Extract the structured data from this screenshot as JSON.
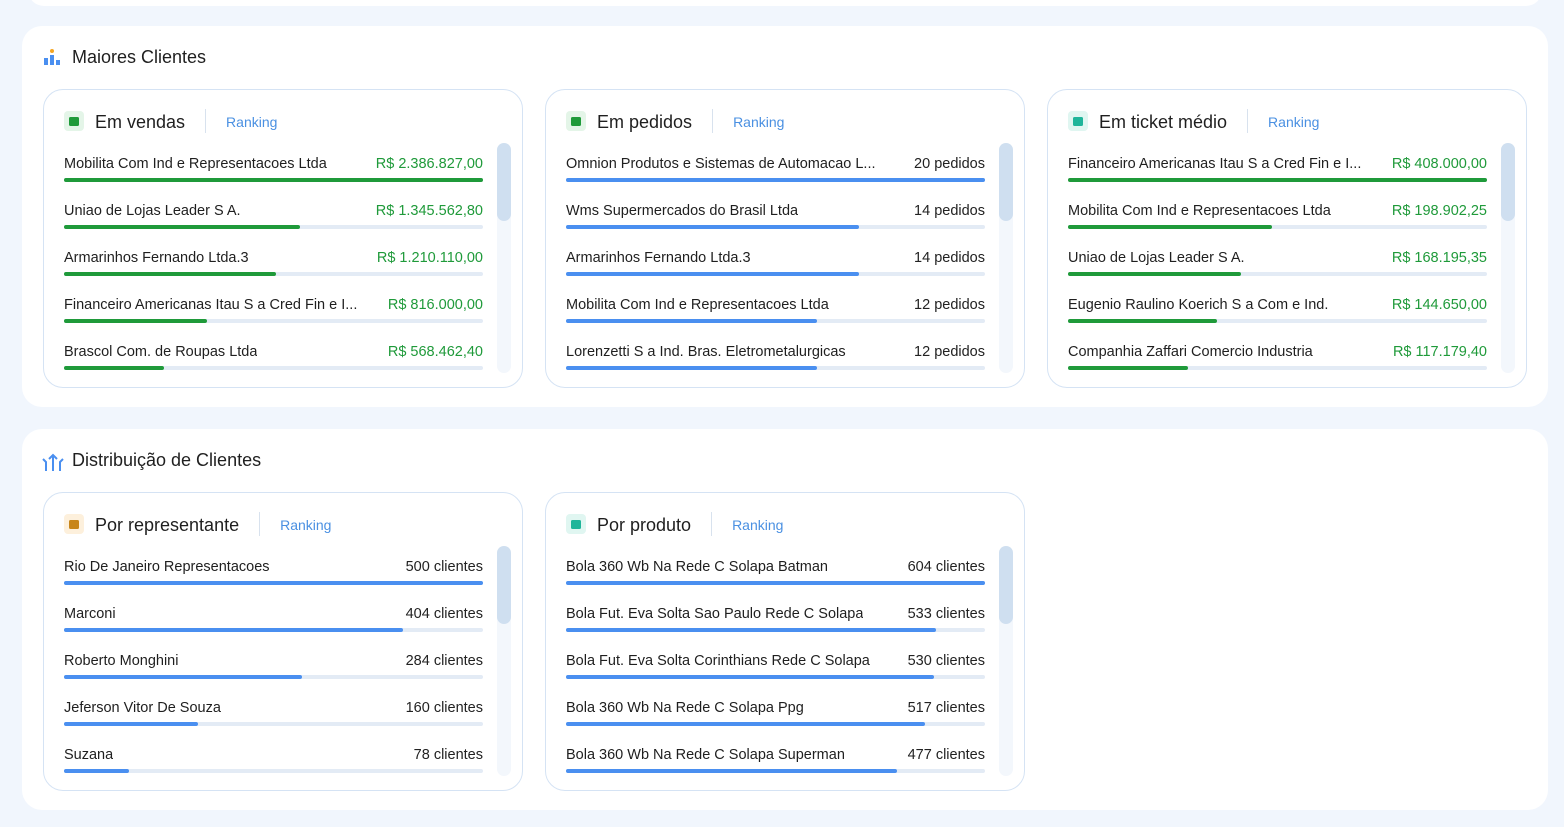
{
  "sections": [
    {
      "title": "Maiores Clientes",
      "cards": [
        {
          "title": "Em vendas",
          "link": "Ranking",
          "bar_color": "#1f9a3a",
          "value_color": "#1f9a3a",
          "rows": [
            {
              "name": "Mobilita Com Ind e Representacoes Ltda",
              "value": 2386827,
              "label": "R$ 2.386.827,00"
            },
            {
              "name": "Uniao de Lojas Leader S A.",
              "value": 1345562.8,
              "label": "R$ 1.345.562,80"
            },
            {
              "name": "Armarinhos Fernando Ltda.3",
              "value": 1210110,
              "label": "R$ 1.210.110,00"
            },
            {
              "name": "Financeiro Americanas Itau S a Cred Fin e I...",
              "value": 816000,
              "label": "R$ 816.000,00"
            },
            {
              "name": "Brascol Com. de Roupas Ltda",
              "value": 568462.4,
              "label": "R$ 568.462,40"
            }
          ]
        },
        {
          "title": "Em pedidos",
          "link": "Ranking",
          "bar_color": "#4a8ff0",
          "value_color": "#222222",
          "rows": [
            {
              "name": "Omnion Produtos e Sistemas de Automacao L...",
              "value": 20,
              "label": "20 pedidos"
            },
            {
              "name": "Wms Supermercados do Brasil Ltda",
              "value": 14,
              "label": "14 pedidos"
            },
            {
              "name": "Armarinhos Fernando Ltda.3",
              "value": 14,
              "label": "14 pedidos"
            },
            {
              "name": "Mobilita Com Ind e Representacoes Ltda",
              "value": 12,
              "label": "12 pedidos"
            },
            {
              "name": "Lorenzetti S a Ind. Bras. Eletrometalurgicas",
              "value": 12,
              "label": "12 pedidos"
            }
          ]
        },
        {
          "title": "Em ticket médio",
          "link": "Ranking",
          "bar_color": "#1f9a3a",
          "value_color": "#1f9a3a",
          "rows": [
            {
              "name": "Financeiro Americanas Itau S a Cred Fin e I...",
              "value": 408000,
              "label": "R$ 408.000,00"
            },
            {
              "name": "Mobilita Com Ind e Representacoes Ltda",
              "value": 198902.25,
              "label": "R$ 198.902,25"
            },
            {
              "name": "Uniao de Lojas Leader S A.",
              "value": 168195.35,
              "label": "R$ 168.195,35"
            },
            {
              "name": "Eugenio Raulino Koerich S a Com e Ind.",
              "value": 144650,
              "label": "R$ 144.650,00"
            },
            {
              "name": "Companhia Zaffari Comercio Industria",
              "value": 117179.4,
              "label": "R$ 117.179,40"
            }
          ]
        }
      ]
    },
    {
      "title": "Distribuição de Clientes",
      "cards": [
        {
          "title": "Por representante",
          "link": "Ranking",
          "bar_color": "#4a8ff0",
          "value_color": "#222222",
          "rows": [
            {
              "name": "Rio De Janeiro Representacoes",
              "value": 500,
              "label": "500 clientes"
            },
            {
              "name": "Marconi",
              "value": 404,
              "label": "404 clientes"
            },
            {
              "name": "Roberto Monghini",
              "value": 284,
              "label": "284 clientes"
            },
            {
              "name": "Jeferson Vitor De Souza",
              "value": 160,
              "label": "160 clientes"
            },
            {
              "name": "Suzana",
              "value": 78,
              "label": "78 clientes"
            }
          ]
        },
        {
          "title": "Por produto",
          "link": "Ranking",
          "bar_color": "#4a8ff0",
          "value_color": "#222222",
          "rows": [
            {
              "name": "Bola 360 Wb Na Rede C  Solapa Batman",
              "value": 604,
              "label": "604 clientes"
            },
            {
              "name": "Bola Fut. Eva Solta Sao Paulo Rede C  Solapa",
              "value": 533,
              "label": "533 clientes"
            },
            {
              "name": "Bola Fut. Eva Solta Corinthians Rede C  Solapa",
              "value": 530,
              "label": "530 clientes"
            },
            {
              "name": "Bola 360 Wb Na Rede C  Solapa Ppg",
              "value": 517,
              "label": "517 clientes"
            },
            {
              "name": "Bola 360 Wb Na Rede C  Solapa Superman",
              "value": 477,
              "label": "477 clientes"
            }
          ]
        }
      ]
    }
  ]
}
